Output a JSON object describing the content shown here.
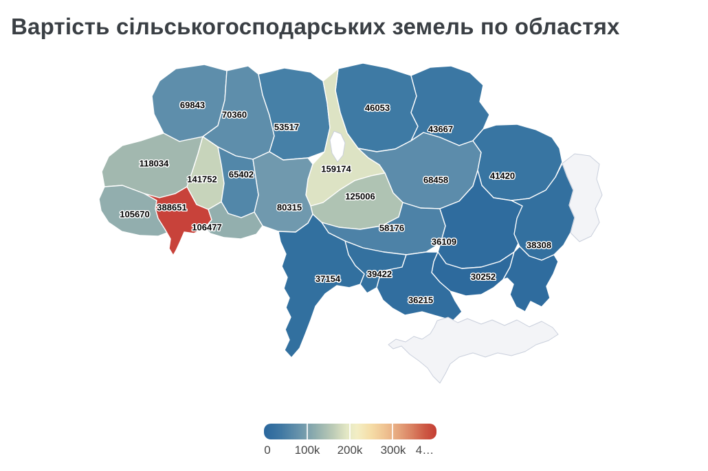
{
  "title": "Вартість сільськогосподарських земель по областях",
  "chart_data": {
    "type": "choropleth",
    "geography": "ukraine-oblasts",
    "value_min": 0,
    "value_max": 400000,
    "regions": [
      {
        "id": "volyn",
        "value": 69843,
        "color": "#5e8eab"
      },
      {
        "id": "rivne",
        "value": 70360,
        "color": "#5e8eab"
      },
      {
        "id": "zhytomyr",
        "value": 53517,
        "color": "#4680a7"
      },
      {
        "id": "chernihiv",
        "value": 46053,
        "color": "#3e7aa4"
      },
      {
        "id": "sumy",
        "value": 43667,
        "color": "#3b77a3"
      },
      {
        "id": "kyiv",
        "value": 159174,
        "color": "#dde3c4"
      },
      {
        "id": "poltava",
        "value": 68458,
        "color": "#5c8cab"
      },
      {
        "id": "kharkiv",
        "value": 41420,
        "color": "#3875a2"
      },
      {
        "id": "lviv",
        "value": 118034,
        "color": "#a2b8af"
      },
      {
        "id": "ternopil",
        "value": 141752,
        "color": "#c7d4bb"
      },
      {
        "id": "khmelnytskyi",
        "value": 65402,
        "color": "#5287a9"
      },
      {
        "id": "vinnytsia",
        "value": 80315,
        "color": "#7099ae"
      },
      {
        "id": "zakarpattia",
        "value": 105670,
        "color": "#92aeae"
      },
      {
        "id": "ivano_frankivsk",
        "value": 388651,
        "color": "#c8423a"
      },
      {
        "id": "chernivtsi",
        "value": 106477,
        "color": "#93afae"
      },
      {
        "id": "cherkasy",
        "value": 125006,
        "color": "#afc3b3"
      },
      {
        "id": "kirovohrad",
        "value": 58176,
        "color": "#4d82a7"
      },
      {
        "id": "dnipro",
        "value": 36109,
        "color": "#2f6c9e"
      },
      {
        "id": "luhansk",
        "value": 38308,
        "color": "#33709f"
      },
      {
        "id": "zaporizhzhia",
        "value": 30252,
        "color": "#2d6a9d"
      },
      {
        "id": "donetsk",
        "value": null,
        "color": "#2f6c9e"
      },
      {
        "id": "mykolaiv",
        "value": 39422,
        "color": "#34719f"
      },
      {
        "id": "kherson",
        "value": 36215,
        "color": "#316e9f"
      },
      {
        "id": "odesa",
        "value": 37154,
        "color": "#32709f"
      },
      {
        "id": "luhansk_east",
        "value": null,
        "color": "#f3f4f7",
        "no_data": true
      },
      {
        "id": "crimea",
        "value": null,
        "color": "#f3f4f7",
        "no_data": true
      },
      {
        "id": "kyiv_city",
        "value": null,
        "color": "#ffffff",
        "no_data": true
      }
    ],
    "legend": {
      "labels": [
        "0",
        "100k",
        "200k",
        "300k",
        "4…"
      ],
      "gradient": [
        {
          "pos": 0,
          "color": "#29669c"
        },
        {
          "pos": 10,
          "color": "#4078a3"
        },
        {
          "pos": 20,
          "color": "#6692ab"
        },
        {
          "pos": 30,
          "color": "#90aeae"
        },
        {
          "pos": 40,
          "color": "#bccbb6"
        },
        {
          "pos": 48,
          "color": "#e3e7c4"
        },
        {
          "pos": 54,
          "color": "#f3eec4"
        },
        {
          "pos": 62,
          "color": "#f5dda7"
        },
        {
          "pos": 70,
          "color": "#efc392"
        },
        {
          "pos": 78,
          "color": "#e5a47c"
        },
        {
          "pos": 86,
          "color": "#d97f60"
        },
        {
          "pos": 93,
          "color": "#cd5a45"
        },
        {
          "pos": 100,
          "color": "#c43d33"
        }
      ]
    }
  }
}
